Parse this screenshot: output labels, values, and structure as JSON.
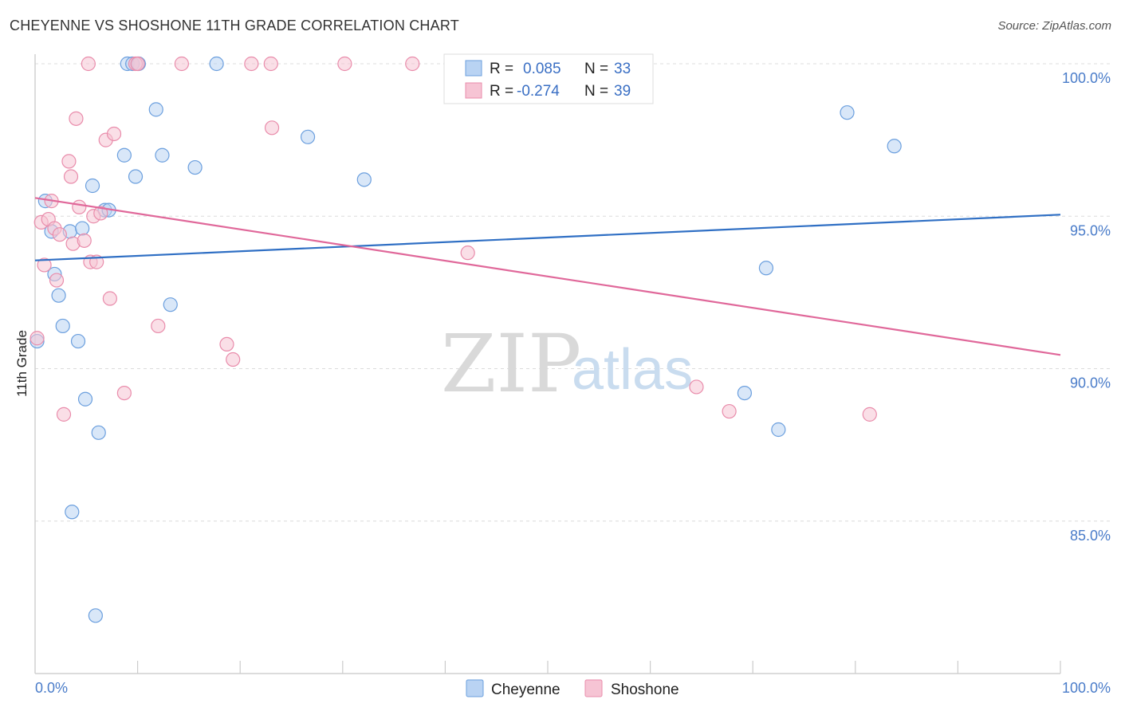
{
  "header": {
    "title": "CHEYENNE VS SHOSHONE 11TH GRADE CORRELATION CHART",
    "source": "Source: ZipAtlas.com"
  },
  "watermark": {
    "zip": "ZIP",
    "atlas": "atlas"
  },
  "legend": {
    "r_label": "R =",
    "n_label": "N =",
    "series": [
      {
        "name": "Cheyenne",
        "r": "0.085",
        "n": "33"
      },
      {
        "name": "Shoshone",
        "r": "-0.274",
        "n": "39"
      }
    ]
  },
  "chart_data": {
    "type": "scatter",
    "title": "CHEYENNE VS SHOSHONE 11TH GRADE CORRELATION CHART",
    "xlabel": "",
    "ylabel": "11th Grade",
    "xlim": [
      0,
      100
    ],
    "ylim": [
      80,
      100
    ],
    "x_tick_labels": [
      "0.0%",
      "100.0%"
    ],
    "y_ticks": [
      85,
      90,
      95,
      100
    ],
    "y_tick_labels": [
      "85.0%",
      "90.0%",
      "95.0%",
      "100.0%"
    ],
    "grid": true,
    "series": [
      {
        "name": "Cheyenne",
        "color": "#6b9fde",
        "fill": "#b9d3f3",
        "trend": {
          "x": [
            0,
            100
          ],
          "y": [
            93.55,
            95.05
          ]
        },
        "points": [
          {
            "x": 0.2,
            "y": 90.9
          },
          {
            "x": 1.0,
            "y": 95.5
          },
          {
            "x": 1.6,
            "y": 94.5
          },
          {
            "x": 1.9,
            "y": 93.1
          },
          {
            "x": 2.3,
            "y": 92.4
          },
          {
            "x": 2.7,
            "y": 91.4
          },
          {
            "x": 3.4,
            "y": 94.5
          },
          {
            "x": 3.6,
            "y": 85.3
          },
          {
            "x": 4.2,
            "y": 90.9
          },
          {
            "x": 4.6,
            "y": 94.6
          },
          {
            "x": 4.9,
            "y": 89.0
          },
          {
            "x": 5.6,
            "y": 96.0
          },
          {
            "x": 6.2,
            "y": 87.9
          },
          {
            "x": 5.9,
            "y": 81.9
          },
          {
            "x": 6.8,
            "y": 95.2
          },
          {
            "x": 7.2,
            "y": 95.2
          },
          {
            "x": 8.7,
            "y": 97.0
          },
          {
            "x": 9.0,
            "y": 100.0
          },
          {
            "x": 9.5,
            "y": 100.0
          },
          {
            "x": 9.8,
            "y": 96.3
          },
          {
            "x": 10.1,
            "y": 100.0
          },
          {
            "x": 11.8,
            "y": 98.5
          },
          {
            "x": 12.4,
            "y": 97.0
          },
          {
            "x": 13.2,
            "y": 92.1
          },
          {
            "x": 15.6,
            "y": 96.6
          },
          {
            "x": 17.7,
            "y": 100.0
          },
          {
            "x": 26.6,
            "y": 97.6
          },
          {
            "x": 32.1,
            "y": 96.2
          },
          {
            "x": 69.2,
            "y": 89.2
          },
          {
            "x": 71.3,
            "y": 93.3
          },
          {
            "x": 72.5,
            "y": 88.0
          },
          {
            "x": 79.2,
            "y": 98.4
          },
          {
            "x": 83.8,
            "y": 97.3
          }
        ]
      },
      {
        "name": "Shoshone",
        "color": "#e98cab",
        "fill": "#f6c4d4",
        "trend": {
          "x": [
            0,
            100
          ],
          "y": [
            95.6,
            90.45
          ]
        },
        "points": [
          {
            "x": 0.2,
            "y": 91.0
          },
          {
            "x": 0.6,
            "y": 94.8
          },
          {
            "x": 0.9,
            "y": 93.4
          },
          {
            "x": 1.3,
            "y": 94.9
          },
          {
            "x": 1.6,
            "y": 95.5
          },
          {
            "x": 1.9,
            "y": 94.6
          },
          {
            "x": 2.1,
            "y": 92.9
          },
          {
            "x": 2.4,
            "y": 94.4
          },
          {
            "x": 2.8,
            "y": 88.5
          },
          {
            "x": 3.3,
            "y": 96.8
          },
          {
            "x": 3.5,
            "y": 96.3
          },
          {
            "x": 3.7,
            "y": 94.1
          },
          {
            "x": 4.0,
            "y": 98.2
          },
          {
            "x": 4.3,
            "y": 95.3
          },
          {
            "x": 4.8,
            "y": 94.2
          },
          {
            "x": 5.2,
            "y": 100.0
          },
          {
            "x": 5.4,
            "y": 93.5
          },
          {
            "x": 5.7,
            "y": 95.0
          },
          {
            "x": 6.0,
            "y": 93.5
          },
          {
            "x": 6.4,
            "y": 95.1
          },
          {
            "x": 6.9,
            "y": 97.5
          },
          {
            "x": 7.3,
            "y": 92.3
          },
          {
            "x": 7.7,
            "y": 97.7
          },
          {
            "x": 8.7,
            "y": 89.2
          },
          {
            "x": 9.8,
            "y": 100.0
          },
          {
            "x": 10.0,
            "y": 100.0
          },
          {
            "x": 12.0,
            "y": 91.4
          },
          {
            "x": 14.3,
            "y": 100.0
          },
          {
            "x": 18.7,
            "y": 90.8
          },
          {
            "x": 19.3,
            "y": 90.3
          },
          {
            "x": 21.1,
            "y": 100.0
          },
          {
            "x": 23.0,
            "y": 100.0
          },
          {
            "x": 23.1,
            "y": 97.9
          },
          {
            "x": 30.2,
            "y": 100.0
          },
          {
            "x": 36.8,
            "y": 100.0
          },
          {
            "x": 42.2,
            "y": 93.8
          },
          {
            "x": 64.5,
            "y": 89.4
          },
          {
            "x": 67.7,
            "y": 88.6
          },
          {
            "x": 81.4,
            "y": 88.5
          }
        ]
      }
    ]
  }
}
